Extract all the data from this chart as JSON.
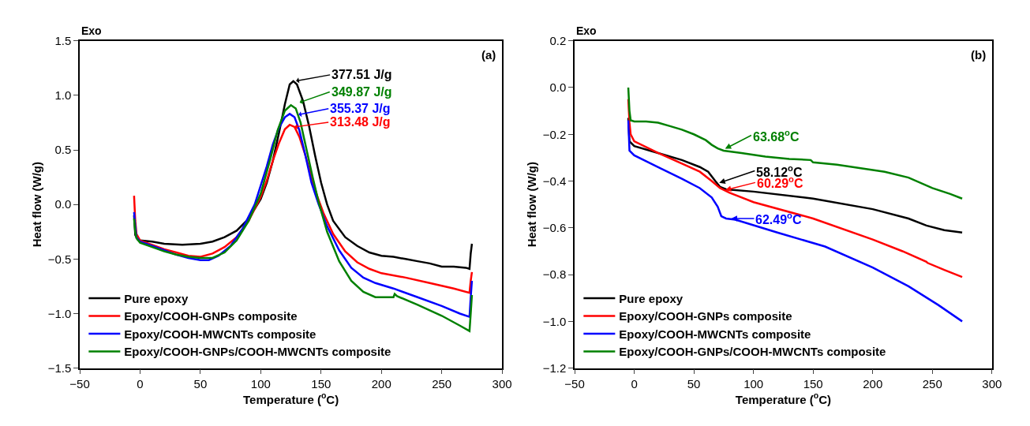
{
  "chart_data": [
    {
      "type": "line",
      "xlabel": "Temperature ($^{o}$C)",
      "ylabel": "Heat flow (W/g)",
      "xlim": [
        -50,
        300
      ],
      "ylim": [
        -1.5,
        1.5
      ],
      "xticks": [
        {
          "value": -50,
          "label": "−50"
        },
        0,
        50,
        100,
        150,
        200,
        250,
        300
      ],
      "yticks": [
        {
          "value": -1.5,
          "label": "−1.5"
        },
        {
          "value": -1.0,
          "label": "−1.0"
        },
        {
          "value": -0.5,
          "label": "−0.5"
        },
        {
          "value": 0,
          "label": "0.0"
        },
        {
          "value": 0.5,
          "label": "0.5"
        },
        {
          "value": 1.0,
          "label": "1.0"
        },
        {
          "value": 1.5,
          "label": "1.5"
        }
      ],
      "legend": "bottom left",
      "line_style": "solid",
      "annotations": [
        "Exo",
        "(a)",
        {
          "text": "377.51 J/g",
          "x": 128,
          "y": 1.13
        },
        {
          "text": "349.87 J/g",
          "x": 131,
          "y": 0.93
        },
        {
          "text": "355.37 J/g",
          "x": 130,
          "y": 0.82
        },
        {
          "text": "313.48 J/g",
          "x": 128,
          "y": 0.71
        }
      ],
      "series": [
        {
          "name": "Pure epoxy",
          "color": "#000000",
          "x": [
            -5,
            -4,
            -2,
            0,
            10,
            20,
            35,
            50,
            60,
            70,
            80,
            90,
            100,
            105,
            110,
            115,
            120,
            124,
            127,
            130,
            135,
            140,
            145,
            150,
            155,
            160,
            170,
            180,
            190,
            200,
            210,
            220,
            230,
            240,
            250,
            260,
            270,
            273,
            274,
            275
          ],
          "values": [
            -0.1,
            -0.28,
            -0.32,
            -0.33,
            -0.34,
            -0.36,
            -0.37,
            -0.36,
            -0.34,
            -0.3,
            -0.24,
            -0.13,
            0.05,
            0.2,
            0.4,
            0.65,
            0.92,
            1.1,
            1.13,
            1.1,
            0.95,
            0.72,
            0.45,
            0.2,
            0.0,
            -0.15,
            -0.3,
            -0.38,
            -0.44,
            -0.47,
            -0.48,
            -0.5,
            -0.52,
            -0.54,
            -0.57,
            -0.57,
            -0.58,
            -0.59,
            -0.45,
            -0.36
          ]
        },
        {
          "name": "Epoxy/COOH-GNPs composite",
          "color": "#ff0000",
          "x": [
            -5,
            -4,
            -3,
            0,
            10,
            20,
            30,
            40,
            50,
            60,
            70,
            80,
            90,
            100,
            105,
            110,
            115,
            120,
            124,
            128,
            132,
            137,
            142,
            147,
            152,
            160,
            170,
            180,
            190,
            200,
            220,
            240,
            260,
            273,
            274,
            275
          ],
          "values": [
            0.08,
            -0.15,
            -0.27,
            -0.33,
            -0.37,
            -0.41,
            -0.44,
            -0.47,
            -0.48,
            -0.45,
            -0.39,
            -0.3,
            -0.15,
            0.07,
            0.22,
            0.4,
            0.56,
            0.69,
            0.73,
            0.71,
            0.62,
            0.45,
            0.25,
            0.07,
            -0.08,
            -0.27,
            -0.43,
            -0.53,
            -0.59,
            -0.63,
            -0.67,
            -0.72,
            -0.77,
            -0.81,
            -0.7,
            -0.62
          ]
        },
        {
          "name": "Epoxy/COOH-MWCNTs composite",
          "color": "#0000ff",
          "x": [
            -5,
            -4,
            -3,
            0,
            10,
            20,
            30,
            40,
            50,
            57,
            65,
            75,
            85,
            95,
            105,
            110,
            115,
            120,
            124,
            128,
            132,
            137,
            142,
            148,
            155,
            165,
            175,
            185,
            195,
            210,
            230,
            250,
            265,
            273,
            274,
            275
          ],
          "values": [
            -0.07,
            -0.2,
            -0.3,
            -0.34,
            -0.38,
            -0.42,
            -0.46,
            -0.49,
            -0.51,
            -0.51,
            -0.47,
            -0.38,
            -0.22,
            0.0,
            0.35,
            0.55,
            0.7,
            0.8,
            0.83,
            0.8,
            0.68,
            0.45,
            0.2,
            0.0,
            -0.2,
            -0.42,
            -0.58,
            -0.67,
            -0.72,
            -0.77,
            -0.85,
            -0.93,
            -1.0,
            -1.03,
            -0.85,
            -0.7
          ]
        },
        {
          "name": "Epoxy/COOH-GNPs/COOH-MWCNTs composite",
          "color": "#008000",
          "x": [
            -5,
            -4,
            -3,
            0,
            10,
            20,
            30,
            40,
            50,
            60,
            70,
            80,
            90,
            100,
            108,
            114,
            120,
            125,
            129,
            133,
            138,
            143,
            148,
            155,
            165,
            175,
            185,
            195,
            210,
            211,
            213,
            230,
            250,
            265,
            273,
            274,
            275
          ],
          "values": [
            -0.13,
            -0.25,
            -0.31,
            -0.35,
            -0.39,
            -0.43,
            -0.46,
            -0.48,
            -0.49,
            -0.49,
            -0.44,
            -0.33,
            -0.15,
            0.1,
            0.42,
            0.68,
            0.86,
            0.91,
            0.88,
            0.75,
            0.5,
            0.25,
            0.02,
            -0.25,
            -0.52,
            -0.7,
            -0.8,
            -0.85,
            -0.85,
            -0.82,
            -0.84,
            -0.92,
            -1.02,
            -1.11,
            -1.16,
            -1.0,
            -0.83
          ]
        }
      ]
    },
    {
      "type": "line",
      "xlabel": "Temperature ($^{o}$C)",
      "ylabel": "Heat flow (W/g)",
      "xlim": [
        -50,
        300
      ],
      "ylim": [
        -1.2,
        0.2
      ],
      "xticks": [
        {
          "value": -50,
          "label": "−50"
        },
        0,
        50,
        100,
        150,
        200,
        250,
        300
      ],
      "yticks": [
        {
          "value": -1.2,
          "label": "−1.2"
        },
        {
          "value": -1.0,
          "label": "−1.0"
        },
        {
          "value": -0.8,
          "label": "−0.8"
        },
        {
          "value": -0.6,
          "label": "−0.6"
        },
        {
          "value": -0.4,
          "label": "−0.4"
        },
        {
          "value": -0.2,
          "label": "−0.2"
        },
        {
          "value": 0,
          "label": "0.0"
        },
        {
          "value": 0.2,
          "label": "0.2"
        }
      ],
      "legend": "bottom left",
      "line_style": "solid",
      "annotations": [
        "Exo",
        "(b)",
        {
          "text": "63.68$^{o}$C",
          "x": 75,
          "y": -0.265
        },
        {
          "text": "58.12$^{o}$C",
          "x": 70,
          "y": -0.41
        },
        {
          "text": "60.29$^{o}$C",
          "x": 75,
          "y": -0.44
        },
        {
          "text": "62.49$^{o}$C",
          "x": 80,
          "y": -0.56
        }
      ],
      "series": [
        {
          "name": "Pure epoxy",
          "color": "#000000",
          "x": [
            -5,
            -4,
            0,
            20,
            40,
            55,
            62,
            68,
            72,
            77,
            100,
            150,
            200,
            230,
            245,
            260,
            275
          ],
          "values": [
            -0.13,
            -0.23,
            -0.25,
            -0.28,
            -0.31,
            -0.34,
            -0.36,
            -0.4,
            -0.425,
            -0.435,
            -0.445,
            -0.475,
            -0.52,
            -0.56,
            -0.59,
            -0.61,
            -0.62
          ]
        },
        {
          "name": "Epoxy/COOH-GNPs composite",
          "color": "#ff0000",
          "x": [
            -5,
            -4,
            -3,
            0,
            20,
            40,
            55,
            65,
            72,
            80,
            100,
            150,
            200,
            225,
            245,
            246,
            260,
            275
          ],
          "values": [
            -0.05,
            -0.15,
            -0.2,
            -0.23,
            -0.28,
            -0.325,
            -0.36,
            -0.4,
            -0.43,
            -0.45,
            -0.49,
            -0.56,
            -0.65,
            -0.7,
            -0.745,
            -0.75,
            -0.78,
            -0.81
          ]
        },
        {
          "name": "Epoxy/COOH-MWCNTs composite",
          "color": "#0000ff",
          "x": [
            -5,
            -4,
            0,
            20,
            40,
            55,
            65,
            70,
            73,
            77,
            85,
            120,
            160,
            200,
            230,
            255,
            275
          ],
          "values": [
            -0.14,
            -0.27,
            -0.29,
            -0.34,
            -0.39,
            -0.43,
            -0.47,
            -0.51,
            -0.55,
            -0.56,
            -0.565,
            -0.62,
            -0.68,
            -0.77,
            -0.85,
            -0.93,
            -1.0
          ]
        },
        {
          "name": "Epoxy/COOH-GNPs/COOH-MWCNTs composite",
          "color": "#008000",
          "x": [
            -5,
            -4,
            -3,
            0,
            10,
            20,
            30,
            40,
            50,
            60,
            65,
            70,
            75,
            90,
            110,
            130,
            148,
            150,
            170,
            190,
            210,
            230,
            250,
            265,
            275
          ],
          "values": [
            0.0,
            -0.1,
            -0.14,
            -0.145,
            -0.145,
            -0.15,
            -0.165,
            -0.18,
            -0.2,
            -0.225,
            -0.245,
            -0.26,
            -0.27,
            -0.28,
            -0.295,
            -0.305,
            -0.31,
            -0.32,
            -0.33,
            -0.345,
            -0.36,
            -0.385,
            -0.43,
            -0.455,
            -0.475
          ]
        }
      ]
    }
  ]
}
